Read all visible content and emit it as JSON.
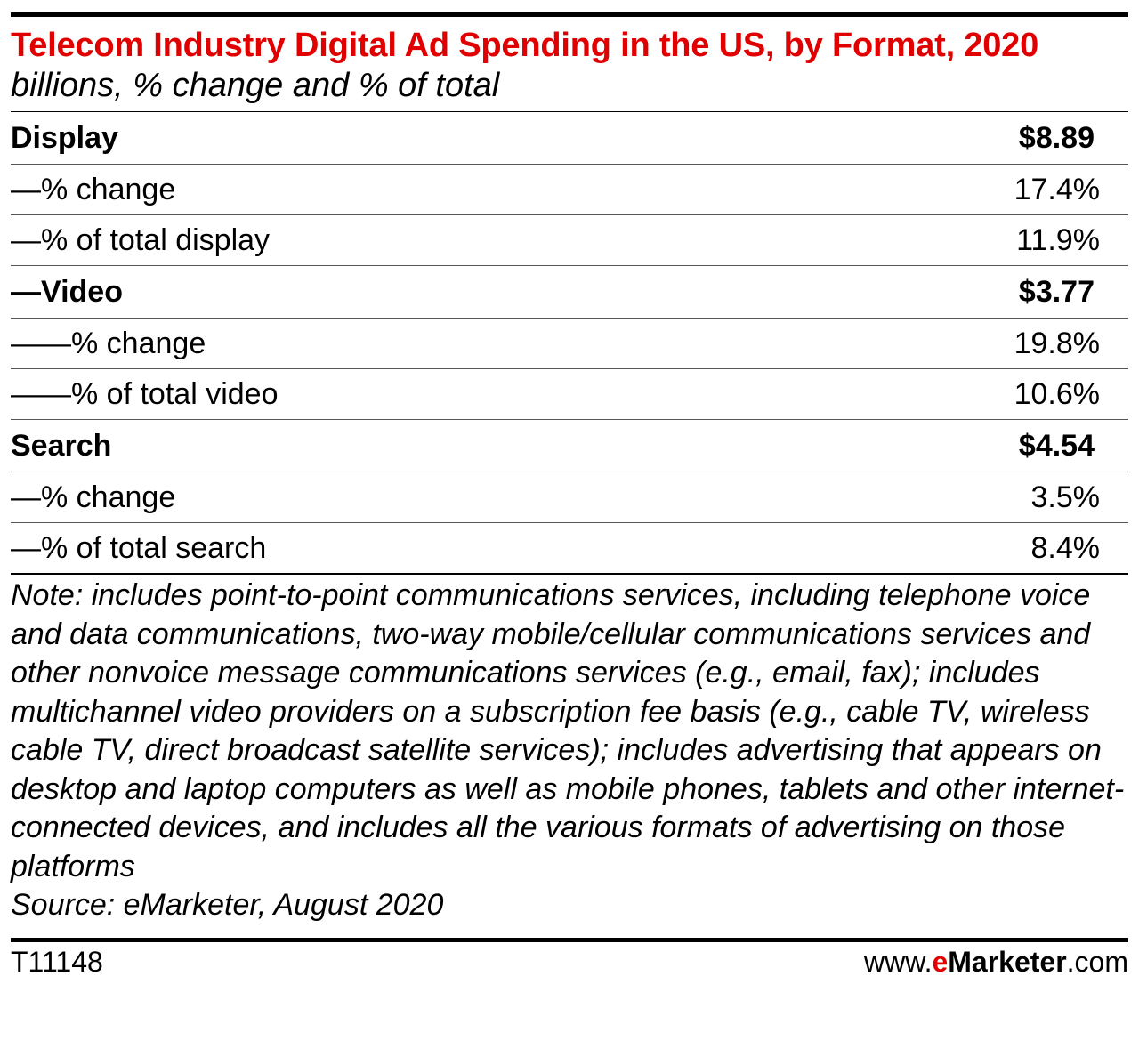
{
  "chart_data": {
    "type": "table",
    "title": "Telecom Industry Digital Ad Spending in the US, by Format, 2020",
    "subtitle": "billions, % change and % of total",
    "rows": [
      {
        "label": "Display",
        "value": "$8.89",
        "bold": true
      },
      {
        "label": "—% change",
        "value": "17.4%",
        "bold": false
      },
      {
        "label": "—% of total display",
        "value": "11.9%",
        "bold": false
      },
      {
        "label": "—Video",
        "value": "$3.77",
        "bold": true
      },
      {
        "label": "——% change",
        "value": "19.8%",
        "bold": false
      },
      {
        "label": "——% of total video",
        "value": "10.6%",
        "bold": false
      },
      {
        "label": "Search",
        "value": "$4.54",
        "bold": true
      },
      {
        "label": "—% change",
        "value": "3.5%",
        "bold": false
      },
      {
        "label": "—% of total search",
        "value": "8.4%",
        "bold": false
      }
    ],
    "note": "Note: includes point-to-point communications services, including telephone voice and data communications, two-way mobile/cellular communications services and other nonvoice message communications services (e.g., email, fax); includes multichannel video providers on a subscription fee basis (e.g., cable TV, wireless cable TV, direct broadcast satellite services); includes advertising that appears on desktop and laptop computers as well as mobile phones, tablets and other internet-connected devices, and includes all the various formats of advertising on those platforms",
    "source": "Source: eMarketer, August 2020"
  },
  "footer": {
    "code": "T11148",
    "brand_prefix": "www.",
    "brand_e": "e",
    "brand_name": "Marketer",
    "brand_suffix": ".com"
  },
  "colors": {
    "title": "#e00000",
    "accent": "#e00000"
  }
}
